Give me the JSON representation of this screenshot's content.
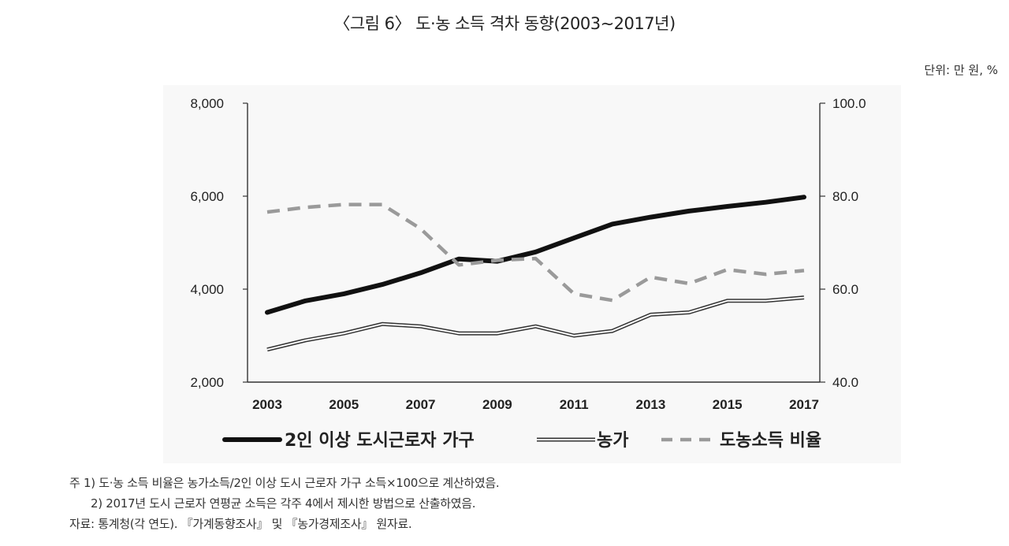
{
  "title": "〈그림 6〉 도·농 소득 격차 동향(2003∼2017년)",
  "unit": "단위: 만 원, %",
  "chart_data": {
    "type": "line",
    "x": [
      2003,
      2004,
      2005,
      2006,
      2007,
      2008,
      2009,
      2010,
      2011,
      2012,
      2013,
      2014,
      2015,
      2016,
      2017
    ],
    "x_tick_labels": [
      "2003",
      "2005",
      "2007",
      "2009",
      "2011",
      "2013",
      "2015",
      "2017"
    ],
    "y_left": {
      "ylim": [
        2000,
        8000
      ],
      "ticks": [
        "2,000",
        "4,000",
        "6,000",
        "8,000"
      ]
    },
    "y_right": {
      "ylim": [
        40.0,
        100.0
      ],
      "ticks": [
        "40.0",
        "60.0",
        "80.0",
        "100.0"
      ]
    },
    "grid": false,
    "legend_position": "bottom",
    "series": [
      {
        "name": "2인 이상 도시근로자 가구",
        "axis": "left",
        "style": "thick-solid",
        "color": "#111111",
        "values": [
          3500,
          3750,
          3900,
          4100,
          4350,
          4650,
          4600,
          4800,
          5100,
          5400,
          5550,
          5680,
          5780,
          5870,
          5980
        ]
      },
      {
        "name": "농가",
        "axis": "left",
        "style": "double-line",
        "color": "#333333",
        "values": [
          2700,
          2900,
          3050,
          3250,
          3200,
          3050,
          3050,
          3200,
          3000,
          3100,
          3450,
          3500,
          3750,
          3750,
          3820
        ]
      },
      {
        "name": "도농소득 비율",
        "axis": "right",
        "style": "dashed",
        "color": "#9a9a9a",
        "values": [
          76.6,
          77.6,
          78.2,
          78.2,
          73.0,
          65.2,
          66.2,
          66.6,
          59.0,
          57.6,
          62.6,
          61.2,
          64.2,
          63.2,
          64.0
        ]
      }
    ]
  },
  "notes": [
    "주 1) 도·농 소득 비율은 농가소득/2인 이상 도시 근로자 가구 소득×100으로 계산하였음.",
    "2) 2017년 도시 근로자 연평균 소득은 각주 4에서 제시한 방법으로 산출하였음.",
    "자료: 통계청(각 연도). 『가계동향조사』 및 『농가경제조사』 원자료."
  ]
}
